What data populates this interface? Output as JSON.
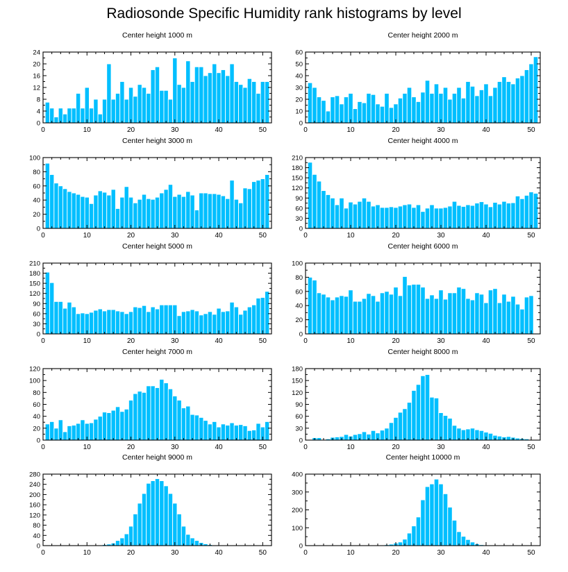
{
  "figure": {
    "title": "Radiosonde Specific Humidity rank histograms by level"
  },
  "colors": {
    "bar": "#00bfff",
    "bar_edge": "#ffffff",
    "axis": "#000000"
  },
  "chart_data": [
    {
      "type": "bar",
      "title": "Center height 1000 m",
      "xlim": [
        0,
        52
      ],
      "ylim": [
        0,
        24
      ],
      "xticks": [
        0,
        10,
        20,
        30,
        40,
        50
      ],
      "yticks": [
        0,
        4,
        8,
        12,
        16,
        20,
        24
      ],
      "values": [
        7,
        5,
        2,
        5,
        3,
        5,
        5,
        10,
        5,
        12,
        5,
        8,
        3,
        8,
        20,
        8,
        10,
        14,
        8,
        12,
        9,
        13,
        12,
        10,
        18,
        19,
        11,
        11,
        8,
        22,
        13,
        12,
        21,
        14,
        19,
        19,
        16,
        17,
        20,
        17,
        18,
        16,
        20,
        14,
        13,
        12,
        15,
        14,
        10,
        14,
        14
      ]
    },
    {
      "type": "bar",
      "title": "Center height 2000 m",
      "xlim": [
        0,
        52
      ],
      "ylim": [
        0,
        60
      ],
      "xticks": [
        0,
        10,
        20,
        30,
        40,
        50
      ],
      "yticks": [
        0,
        10,
        20,
        30,
        40,
        50,
        60
      ],
      "values": [
        34,
        30,
        22,
        19,
        10,
        22,
        23,
        16,
        22,
        25,
        12,
        18,
        17,
        25,
        24,
        16,
        14,
        25,
        13,
        16,
        21,
        25,
        30,
        22,
        18,
        26,
        36,
        25,
        33,
        25,
        30,
        20,
        25,
        30,
        21,
        35,
        31,
        23,
        28,
        33,
        23,
        30,
        35,
        39,
        35,
        33,
        38,
        40,
        45,
        50,
        56
      ]
    },
    {
      "type": "bar",
      "title": "Center height 3000 m",
      "xlim": [
        0,
        52
      ],
      "ylim": [
        0,
        100
      ],
      "xticks": [
        0,
        10,
        20,
        30,
        40,
        50
      ],
      "yticks": [
        0,
        20,
        40,
        60,
        80,
        100
      ],
      "values": [
        92,
        76,
        64,
        60,
        56,
        52,
        50,
        48,
        45,
        44,
        35,
        47,
        53,
        51,
        47,
        55,
        28,
        44,
        59,
        44,
        36,
        41,
        48,
        42,
        41,
        44,
        50,
        55,
        62,
        45,
        48,
        45,
        52,
        47,
        26,
        50,
        50,
        49,
        49,
        48,
        46,
        42,
        68,
        41,
        36,
        57,
        56,
        66,
        68,
        70,
        76
      ]
    },
    {
      "type": "bar",
      "title": "Center height 4000 m",
      "xlim": [
        0,
        52
      ],
      "ylim": [
        0,
        210
      ],
      "xticks": [
        0,
        10,
        20,
        30,
        40,
        50
      ],
      "yticks": [
        0,
        30,
        60,
        90,
        120,
        150,
        180,
        210
      ],
      "values": [
        196,
        160,
        140,
        112,
        100,
        90,
        70,
        90,
        60,
        78,
        72,
        80,
        90,
        80,
        66,
        70,
        62,
        62,
        64,
        62,
        66,
        70,
        72,
        62,
        70,
        50,
        60,
        70,
        60,
        60,
        62,
        66,
        80,
        68,
        65,
        70,
        68,
        75,
        79,
        72,
        64,
        77,
        72,
        80,
        75,
        76,
        96,
        88,
        98,
        108,
        104
      ]
    },
    {
      "type": "bar",
      "title": "Center height 5000 m",
      "xlim": [
        0,
        52
      ],
      "ylim": [
        0,
        210
      ],
      "xticks": [
        0,
        10,
        20,
        30,
        40,
        50
      ],
      "yticks": [
        0,
        30,
        60,
        90,
        120,
        150,
        180,
        210
      ],
      "values": [
        183,
        152,
        96,
        96,
        76,
        94,
        80,
        60,
        62,
        60,
        64,
        70,
        74,
        68,
        72,
        72,
        68,
        66,
        60,
        66,
        80,
        78,
        84,
        66,
        80,
        74,
        86,
        86,
        86,
        86,
        54,
        66,
        68,
        72,
        68,
        56,
        60,
        66,
        58,
        76,
        66,
        68,
        94,
        80,
        58,
        70,
        80,
        86,
        106,
        108,
        126
      ]
    },
    {
      "type": "bar",
      "title": "Center height 6000 m",
      "xlim": [
        0,
        52
      ],
      "ylim": [
        0,
        100
      ],
      "xticks": [
        0,
        10,
        20,
        30,
        40,
        50
      ],
      "yticks": [
        0,
        20,
        40,
        60,
        80,
        100
      ],
      "values": [
        80,
        76,
        58,
        56,
        52,
        48,
        52,
        54,
        53,
        62,
        46,
        46,
        50,
        57,
        54,
        46,
        58,
        60,
        56,
        66,
        54,
        81,
        69,
        70,
        70,
        66,
        50,
        55,
        50,
        62,
        49,
        58,
        58,
        66,
        64,
        50,
        48,
        58,
        56,
        44,
        62,
        64,
        44,
        56,
        46,
        53,
        42,
        35,
        52,
        54
      ]
    },
    {
      "type": "bar",
      "title": "Center height 7000 m",
      "xlim": [
        0,
        52
      ],
      "ylim": [
        0,
        120
      ],
      "xticks": [
        0,
        10,
        20,
        30,
        40,
        50
      ],
      "yticks": [
        0,
        20,
        40,
        60,
        80,
        100,
        120
      ],
      "values": [
        27,
        31,
        20,
        34,
        14,
        24,
        25,
        28,
        34,
        28,
        29,
        35,
        40,
        47,
        46,
        50,
        56,
        48,
        52,
        67,
        78,
        82,
        80,
        91,
        91,
        88,
        102,
        96,
        86,
        74,
        67,
        54,
        57,
        43,
        42,
        38,
        33,
        27,
        31,
        22,
        27,
        25,
        29,
        25,
        26,
        24,
        16,
        17,
        28,
        22,
        31
      ]
    },
    {
      "type": "bar",
      "title": "Center height 8000 m",
      "xlim": [
        0,
        52
      ],
      "ylim": [
        0,
        180
      ],
      "xticks": [
        0,
        10,
        20,
        30,
        40,
        50
      ],
      "yticks": [
        0,
        30,
        60,
        90,
        120,
        150,
        180
      ],
      "values": [
        0,
        6,
        6,
        0,
        3,
        7,
        8,
        9,
        14,
        10,
        14,
        16,
        21,
        15,
        24,
        18,
        25,
        30,
        44,
        57,
        70,
        79,
        95,
        125,
        140,
        162,
        165,
        108,
        106,
        69,
        62,
        55,
        37,
        30,
        26,
        28,
        30,
        26,
        24,
        20,
        17,
        12,
        10,
        8,
        9,
        7,
        5,
        4,
        3,
        0,
        0
      ]
    },
    {
      "type": "bar",
      "title": "Center height 9000 m",
      "xlim": [
        0,
        52
      ],
      "ylim": [
        0,
        280
      ],
      "xticks": [
        0,
        10,
        20,
        30,
        40,
        50
      ],
      "yticks": [
        0,
        40,
        80,
        120,
        160,
        200,
        240,
        280
      ],
      "values": [
        0,
        0,
        0,
        0,
        0,
        0,
        0,
        0,
        0,
        0,
        0,
        2,
        2,
        4,
        6,
        10,
        20,
        30,
        46,
        76,
        124,
        166,
        204,
        244,
        254,
        262,
        254,
        234,
        204,
        166,
        124,
        76,
        44,
        30,
        20,
        12,
        7,
        4,
        2,
        1,
        0,
        0,
        0,
        0,
        0,
        0,
        0,
        0,
        0,
        0,
        0
      ]
    },
    {
      "type": "bar",
      "title": "Center height 10000 m",
      "xlim": [
        0,
        52
      ],
      "ylim": [
        0,
        400
      ],
      "xticks": [
        0,
        10,
        20,
        30,
        40,
        50
      ],
      "yticks": [
        0,
        100,
        200,
        300,
        400
      ],
      "values": [
        0,
        0,
        0,
        0,
        0,
        0,
        0,
        0,
        0,
        0,
        0,
        0,
        0,
        0,
        0,
        0,
        0,
        5,
        8,
        14,
        20,
        36,
        70,
        110,
        160,
        256,
        330,
        345,
        372,
        345,
        290,
        215,
        142,
        78,
        52,
        34,
        20,
        10,
        5,
        2,
        0,
        0,
        0,
        0,
        0,
        0,
        0,
        0,
        0,
        0,
        0
      ]
    }
  ]
}
